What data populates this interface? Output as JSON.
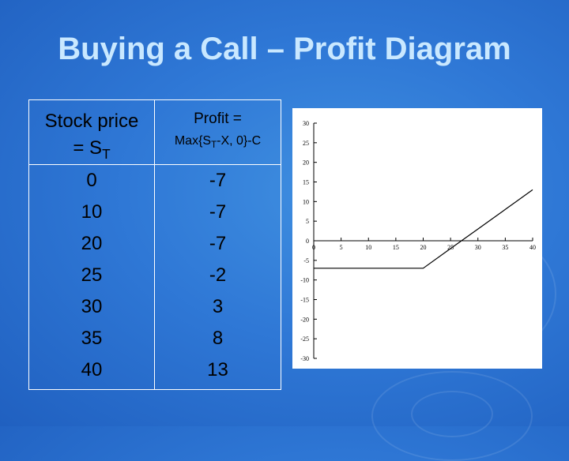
{
  "slide": {
    "title": "Buying a Call – Profit Diagram"
  },
  "table": {
    "header_col1_line1": "Stock price",
    "header_col1_line2": "= S",
    "header_col1_sub": "T",
    "header_col2_line1": "Profit =",
    "header_col2_line2a": "Max{S",
    "header_col2_sub": "T",
    "header_col2_line2b": "-X, 0}-C",
    "rows": [
      {
        "price": "0",
        "profit": "-7"
      },
      {
        "price": "10",
        "profit": "-7"
      },
      {
        "price": "20",
        "profit": "-7"
      },
      {
        "price": "25",
        "profit": "-2"
      },
      {
        "price": "30",
        "profit": "3"
      },
      {
        "price": "35",
        "profit": "8"
      },
      {
        "price": "40",
        "profit": "13"
      }
    ]
  },
  "chart_data": {
    "type": "line",
    "x": [
      0,
      5,
      10,
      15,
      20,
      25,
      30,
      35,
      40
    ],
    "series": [
      {
        "values": [
          -7,
          -7,
          -7,
          -7,
          -7,
          -2,
          3,
          8,
          13
        ]
      }
    ],
    "xticks": [
      0,
      5,
      10,
      15,
      20,
      25,
      30,
      35,
      40
    ],
    "yticks": [
      30,
      25,
      20,
      15,
      10,
      5,
      0,
      -5,
      -10,
      -15,
      -20,
      -25,
      -30
    ],
    "xlim": [
      0,
      40
    ],
    "ylim": [
      -30,
      30
    ],
    "grid": false,
    "line_color": "#000000"
  }
}
